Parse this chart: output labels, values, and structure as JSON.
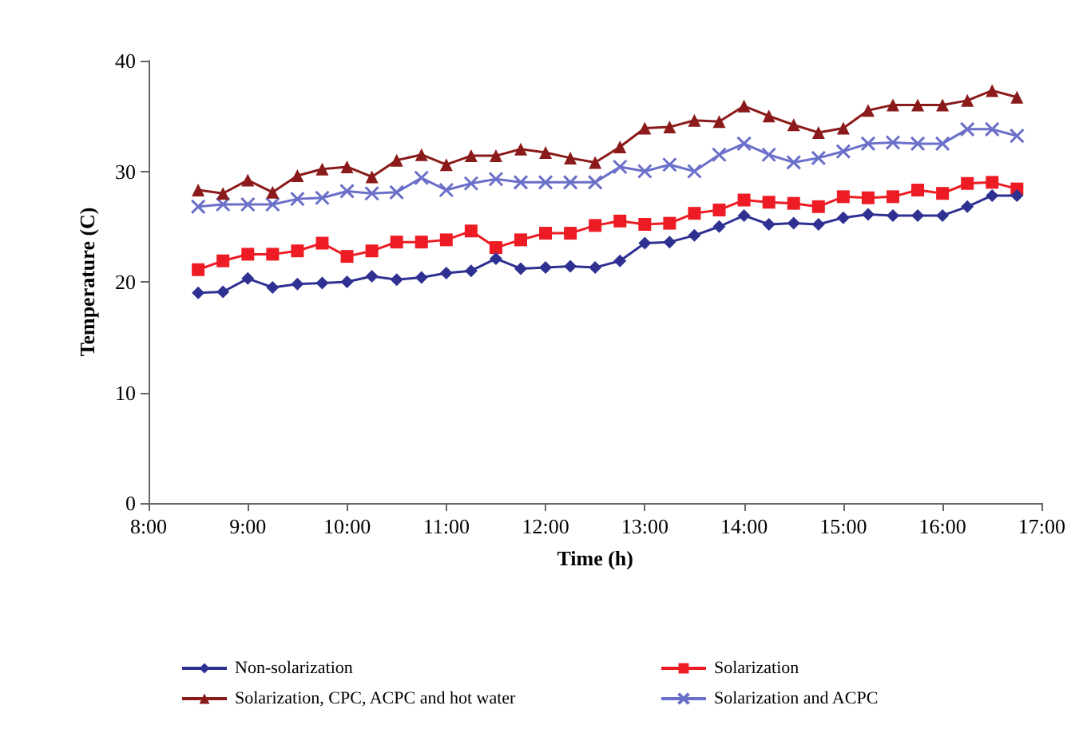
{
  "chart_data": {
    "type": "line",
    "xlabel": "Time (h)",
    "ylabel": "Temperature (C)",
    "x": [
      8.5,
      8.75,
      9,
      9.25,
      9.5,
      9.75,
      10,
      10.25,
      10.5,
      10.75,
      11,
      11.25,
      11.5,
      11.75,
      12,
      12.25,
      12.5,
      12.75,
      13,
      13.25,
      13.5,
      13.75,
      14,
      14.25,
      14.5,
      14.75,
      15,
      15.25,
      15.5,
      15.75,
      16,
      16.25,
      16.5,
      16.75
    ],
    "series": [
      {
        "name": "Non-solarization",
        "color": "#2e3192",
        "marker": "diamond",
        "values": [
          19,
          19.1,
          20.3,
          19.5,
          19.8,
          19.9,
          20,
          20.5,
          20.2,
          20.4,
          20.8,
          21,
          22.1,
          21.2,
          21.3,
          21.4,
          21.3,
          21.9,
          23.5,
          23.6,
          24.2,
          25,
          26,
          25.2,
          25.3,
          25.2,
          25.8,
          26.1,
          26,
          26,
          26,
          26.8,
          27.8,
          27.8
        ]
      },
      {
        "name": "Solarization",
        "color": "#ed1c24",
        "marker": "square",
        "values": [
          21.1,
          21.9,
          22.5,
          22.5,
          22.8,
          23.5,
          22.3,
          22.8,
          23.6,
          23.6,
          23.8,
          24.6,
          23.1,
          23.8,
          24.4,
          24.4,
          25.1,
          25.5,
          25.2,
          25.3,
          26.2,
          26.5,
          27.4,
          27.2,
          27.1,
          26.8,
          27.7,
          27.6,
          27.7,
          28.3,
          28,
          28.9,
          29,
          28.4
        ]
      },
      {
        "name": "Solarization, CPC, ACPC and hot water",
        "color": "#8b1a1a",
        "marker": "triangle",
        "values": [
          28.3,
          28,
          29.2,
          28.1,
          29.6,
          30.2,
          30.4,
          29.5,
          31,
          31.5,
          30.6,
          31.4,
          31.4,
          32,
          31.7,
          31.2,
          30.8,
          32.2,
          33.9,
          34,
          34.6,
          34.5,
          35.9,
          35,
          34.2,
          33.5,
          33.9,
          35.5,
          36,
          36,
          36,
          36.4,
          37.3,
          36.7
        ]
      },
      {
        "name": "Solarization and ACPC",
        "color": "#6a6fc9",
        "marker": "cross",
        "values": [
          26.8,
          27,
          27,
          27,
          27.5,
          27.6,
          28.2,
          28,
          28.1,
          29.4,
          28.3,
          28.9,
          29.3,
          29,
          29,
          29,
          29,
          30.4,
          30,
          30.6,
          30,
          31.5,
          32.5,
          31.5,
          30.8,
          31.2,
          31.8,
          32.5,
          32.6,
          32.5,
          32.5,
          33.8,
          33.8,
          33.2
        ]
      }
    ],
    "xlim": [
      8,
      17
    ],
    "xticks": [
      {
        "value": 8,
        "label": "8:00"
      },
      {
        "value": 9,
        "label": "9:00"
      },
      {
        "value": 10,
        "label": "10:00"
      },
      {
        "value": 11,
        "label": "11:00"
      },
      {
        "value": 12,
        "label": "12:00"
      },
      {
        "value": 13,
        "label": "13:00"
      },
      {
        "value": 14,
        "label": "14:00"
      },
      {
        "value": 15,
        "label": "15:00"
      },
      {
        "value": 16,
        "label": "16:00"
      },
      {
        "value": 17,
        "label": "17:00"
      }
    ],
    "ylim": [
      0,
      40
    ],
    "yticks": [
      0,
      10,
      20,
      30,
      40
    ],
    "grid": false,
    "legend": "bottom"
  }
}
